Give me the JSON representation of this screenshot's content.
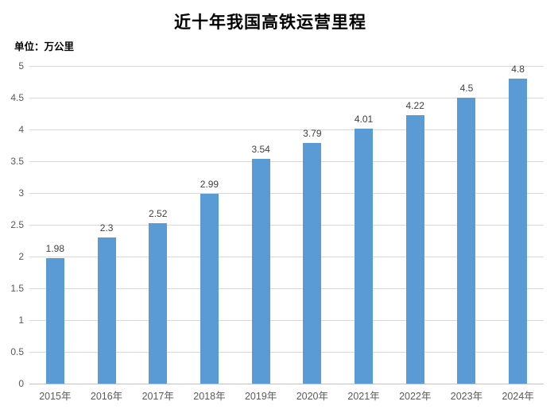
{
  "title": "近十年我国高铁运营里程",
  "unit_label": "单位：万公里",
  "colors": {
    "bar": "#5b9bd5",
    "gridline": "#d9d9d9",
    "axis_line": "#c0c0c0",
    "tick_label": "#595959",
    "data_label": "#3f3f3f",
    "title": "#000000"
  },
  "chart_data": {
    "type": "bar",
    "title": "近十年我国高铁运营里程",
    "categories": [
      "2015年",
      "2016年",
      "2017年",
      "2018年",
      "2019年",
      "2020年",
      "2021年",
      "2022年",
      "2023年",
      "2024年"
    ],
    "values": [
      1.98,
      2.3,
      2.52,
      2.99,
      3.54,
      3.79,
      4.01,
      4.22,
      4.5,
      4.8
    ],
    "value_labels": [
      "1.98",
      "2.3",
      "2.52",
      "2.99",
      "3.54",
      "3.79",
      "4.01",
      "4.22",
      "4.5",
      "4.8"
    ],
    "xlabel": "",
    "ylabel": "单位：万公里",
    "ylim": [
      0,
      5
    ],
    "ytick_step": 0.5,
    "ytick_labels": [
      "0",
      "0.5",
      "1",
      "1.5",
      "2",
      "2.5",
      "3",
      "3.5",
      "4",
      "4.5",
      "5"
    ],
    "grid": true,
    "legend": false,
    "data_labels_shown": true
  }
}
